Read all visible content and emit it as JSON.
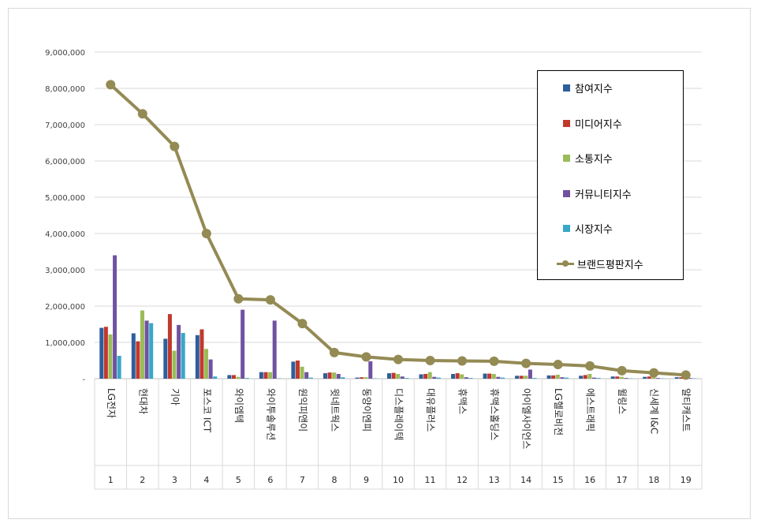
{
  "chart_data": {
    "type": "bar",
    "categories": [
      "LG전자",
      "현대차",
      "기아",
      "포스코 ICT",
      "와이엠텍",
      "와이투솔루션",
      "원익피앤이",
      "윗네트웍스",
      "동양이엔피",
      "디스플레이텍",
      "대유플러스",
      "휴맥스",
      "휴맥스홀딩스",
      "아이엘사이언스",
      "LG헬로비전",
      "에스트래픽",
      "윌링스",
      "신세계 I&C",
      "알티캐스트"
    ],
    "numbers": [
      "1",
      "2",
      "3",
      "4",
      "5",
      "6",
      "7",
      "8",
      "9",
      "10",
      "11",
      "12",
      "13",
      "14",
      "15",
      "16",
      "17",
      "18",
      "19"
    ],
    "ylim": [
      0,
      9000000
    ],
    "yticks": [
      "-",
      "1,000,000",
      "2,000,000",
      "3,000,000",
      "4,000,000",
      "5,000,000",
      "6,000,000",
      "7,000,000",
      "8,000,000",
      "9,000,000"
    ],
    "grid": true,
    "legend_position": "top-right",
    "series": [
      {
        "name": "참여지수",
        "type": "bar",
        "color": "#2e5e9e",
        "values": [
          1400000,
          1250000,
          1100000,
          1200000,
          100000,
          180000,
          470000,
          150000,
          30000,
          150000,
          120000,
          130000,
          140000,
          80000,
          90000,
          80000,
          60000,
          50000,
          40000
        ]
      },
      {
        "name": "미디어지수",
        "type": "bar",
        "color": "#c0392b",
        "values": [
          1430000,
          1030000,
          1780000,
          1360000,
          100000,
          180000,
          500000,
          170000,
          40000,
          160000,
          130000,
          150000,
          140000,
          80000,
          90000,
          100000,
          60000,
          60000,
          40000
        ]
      },
      {
        "name": "소통지수",
        "type": "bar",
        "color": "#9bbb59",
        "values": [
          1220000,
          1880000,
          770000,
          820000,
          50000,
          180000,
          330000,
          170000,
          40000,
          130000,
          180000,
          120000,
          130000,
          80000,
          110000,
          130000,
          50000,
          50000,
          30000
        ]
      },
      {
        "name": "커뮤니티지수",
        "type": "bar",
        "color": "#7052a0",
        "values": [
          3400000,
          1600000,
          1480000,
          530000,
          1900000,
          1600000,
          180000,
          130000,
          480000,
          60000,
          50000,
          40000,
          50000,
          250000,
          40000,
          30000,
          20000,
          20000,
          20000
        ]
      },
      {
        "name": "시장지수",
        "type": "bar",
        "color": "#37a8c8",
        "values": [
          630000,
          1530000,
          1260000,
          60000,
          20000,
          10000,
          30000,
          40000,
          10000,
          20000,
          30000,
          20000,
          30000,
          20000,
          30000,
          20000,
          10000,
          10000,
          10000
        ]
      },
      {
        "name": "브랜드평판지수",
        "type": "line",
        "color": "#948a54",
        "values": [
          8100000,
          7300000,
          6400000,
          4000000,
          2200000,
          2170000,
          1520000,
          720000,
          600000,
          530000,
          500000,
          490000,
          480000,
          420000,
          390000,
          350000,
          220000,
          160000,
          100000
        ]
      }
    ]
  }
}
